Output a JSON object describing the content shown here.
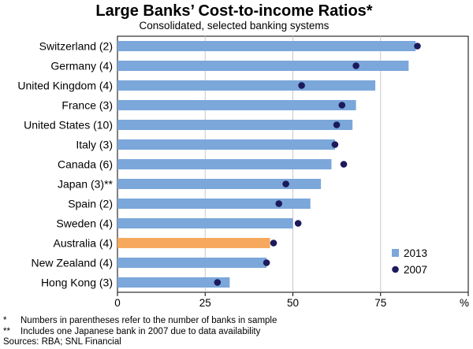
{
  "chart_data": {
    "type": "bar",
    "orientation": "horizontal",
    "title": "Large Banks’ Cost-to-income Ratios*",
    "subtitle": "Consolidated, selected banking systems",
    "unit_label": "%",
    "categories": [
      "Switzerland (2)",
      "Germany (4)",
      "United Kingdom (4)",
      "France (3)",
      "United States (10)",
      "Italy (3)",
      "Canada (6)",
      "Japan (3)**",
      "Spain (2)",
      "Sweden (4)",
      "Australia (4)",
      "New Zealand (4)",
      "Hong Kong (3)"
    ],
    "series": [
      {
        "name": "2013",
        "kind": "bar",
        "color": "#7ba7da",
        "values": [
          85,
          83,
          73.5,
          68,
          67,
          62,
          61,
          58,
          55,
          50,
          43.5,
          42.5,
          32
        ]
      },
      {
        "name": "2007",
        "kind": "dot",
        "color": "#1c1a5c",
        "values": [
          85.5,
          68,
          52.5,
          64,
          62.5,
          62,
          64.5,
          48,
          46,
          51.5,
          44.5,
          42.5,
          28.5
        ]
      }
    ],
    "highlight": {
      "category": "Australia (4)",
      "color": "#f6a95d"
    },
    "xlim": [
      0,
      100
    ],
    "xticks": [
      "0",
      "25",
      "50",
      "75"
    ],
    "grid": "vertical",
    "legend": "bottom-right"
  },
  "notes": [
    {
      "mark": "*",
      "text": "Numbers in parentheses refer to the number of banks in sample"
    },
    {
      "mark": "**",
      "text": "Includes one Japanese bank in 2007 due to data availability"
    }
  ],
  "sources": "Sources: RBA; SNL Financial"
}
